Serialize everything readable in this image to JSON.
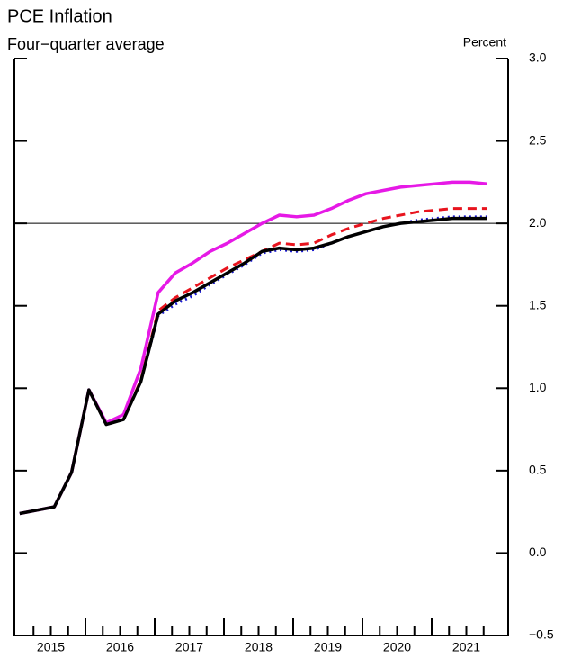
{
  "chart_data": {
    "type": "line",
    "title": "PCE Inflation",
    "subtitle": "Four−quarter average",
    "y_label": "Percent",
    "x": [
      2015.05,
      2015.3,
      2015.55,
      2015.8,
      2016.05,
      2016.3,
      2016.55,
      2016.8,
      2017.05,
      2017.3,
      2017.55,
      2017.8,
      2018.05,
      2018.3,
      2018.55,
      2018.8,
      2019.05,
      2019.3,
      2019.55,
      2019.8,
      2020.05,
      2020.3,
      2020.55,
      2020.8,
      2021.05,
      2021.3,
      2021.55,
      2021.8
    ],
    "xlim": [
      2015,
      2022
    ],
    "xticks": [
      {
        "value": 2015.5,
        "label": "2015"
      },
      {
        "value": 2016.5,
        "label": "2016"
      },
      {
        "value": 2017.5,
        "label": "2017"
      },
      {
        "value": 2018.5,
        "label": "2018"
      },
      {
        "value": 2019.5,
        "label": "2019"
      },
      {
        "value": 2020.5,
        "label": "2020"
      },
      {
        "value": 2021.5,
        "label": "2021"
      }
    ],
    "ylim": [
      -0.5,
      3.0
    ],
    "yticks": [
      {
        "value": -0.5,
        "label": "−0.5"
      },
      {
        "value": 0,
        "label": "0.0"
      },
      {
        "value": 0.5,
        "label": "0.5"
      },
      {
        "value": 1,
        "label": "1.0"
      },
      {
        "value": 1.5,
        "label": "1.5"
      },
      {
        "value": 2,
        "label": "2.0"
      },
      {
        "value": 2.5,
        "label": "2.5"
      },
      {
        "value": 3,
        "label": "3.0"
      }
    ],
    "reference_line": 2,
    "series": [
      {
        "color": "#e619e6",
        "dash": "solid",
        "values": [
          0.24,
          0.26,
          0.28,
          0.49,
          0.99,
          0.79,
          0.84,
          1.12,
          1.58,
          1.7,
          1.76,
          1.83,
          1.88,
          1.94,
          2.0,
          2.05,
          2.04,
          2.05,
          2.09,
          2.14,
          2.18,
          2.2,
          2.22,
          2.23,
          2.24,
          2.25,
          2.25,
          2.24
        ]
      },
      {
        "color": "#e8141e",
        "dash": "dashed",
        "values": [
          0.24,
          0.26,
          0.28,
          0.49,
          0.99,
          0.78,
          0.81,
          1.05,
          1.47,
          1.55,
          1.61,
          1.67,
          1.73,
          1.78,
          1.83,
          1.88,
          1.87,
          1.88,
          1.93,
          1.97,
          2.0,
          2.03,
          2.05,
          2.07,
          2.08,
          2.09,
          2.09,
          2.09
        ]
      },
      {
        "color": "#1a1ad0",
        "dash": "dotted",
        "values": [
          0.24,
          0.26,
          0.28,
          0.49,
          0.99,
          0.78,
          0.81,
          1.04,
          1.44,
          1.51,
          1.56,
          1.63,
          1.69,
          1.75,
          1.82,
          1.84,
          1.83,
          1.84,
          1.88,
          1.92,
          1.95,
          1.98,
          2.0,
          2.02,
          2.03,
          2.04,
          2.04,
          2.04
        ]
      },
      {
        "color": "#000000",
        "dash": "solid",
        "values": [
          0.24,
          0.26,
          0.28,
          0.49,
          0.99,
          0.78,
          0.81,
          1.04,
          1.45,
          1.53,
          1.58,
          1.64,
          1.7,
          1.76,
          1.83,
          1.85,
          1.84,
          1.85,
          1.88,
          1.92,
          1.95,
          1.98,
          2.0,
          2.01,
          2.02,
          2.03,
          2.03,
          2.03
        ]
      }
    ]
  }
}
